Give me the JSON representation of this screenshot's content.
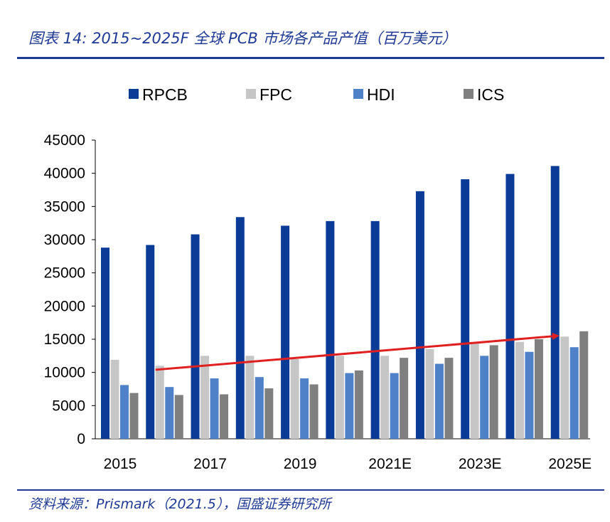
{
  "title": "图表 14:  2015~2025F 全球 PCB 市场各产品产值（百万美元）",
  "source": "资料来源：Prismark（2021.5），国盛证券研究所",
  "colors": {
    "RPCB": "#0a3b96",
    "FPC": "#c6c6c6",
    "HDI": "#4f81c8",
    "ICS": "#7f7f7f",
    "trend": "#e02020",
    "accent": "#1f3a93"
  },
  "chart_data": {
    "type": "bar",
    "categories": [
      "2015",
      "2016",
      "2017",
      "2018",
      "2019",
      "2020",
      "2021E",
      "2022E",
      "2023E",
      "2024E",
      "2025E"
    ],
    "x_tick_labels": [
      "2015",
      "",
      "2017",
      "",
      "2019",
      "",
      "2021E",
      "",
      "2023E",
      "",
      "2025E"
    ],
    "series": [
      {
        "name": "RPCB",
        "values": [
          28800,
          29200,
          30800,
          33400,
          32100,
          32800,
          32800,
          37300,
          39100,
          39900,
          41100
        ]
      },
      {
        "name": "FPC",
        "values": [
          11900,
          11000,
          12500,
          12500,
          12000,
          12500,
          12500,
          13500,
          14400,
          14600,
          15400
        ]
      },
      {
        "name": "HDI",
        "values": [
          8100,
          7800,
          9100,
          9300,
          9100,
          9900,
          9900,
          11300,
          12500,
          13100,
          13800
        ]
      },
      {
        "name": "ICS",
        "values": [
          6900,
          6600,
          6700,
          7600,
          8200,
          10300,
          12200,
          12200,
          14100,
          15000,
          16200
        ]
      }
    ],
    "ylim": [
      0,
      45000
    ],
    "yticks": [
      0,
      5000,
      10000,
      15000,
      20000,
      25000,
      30000,
      35000,
      40000,
      45000
    ],
    "legend_position": "top",
    "grid": false,
    "annotation": {
      "type": "arrow",
      "from": {
        "category": "2016",
        "y": 10400
      },
      "to": {
        "category": "2025E",
        "y": 15500
      }
    }
  }
}
